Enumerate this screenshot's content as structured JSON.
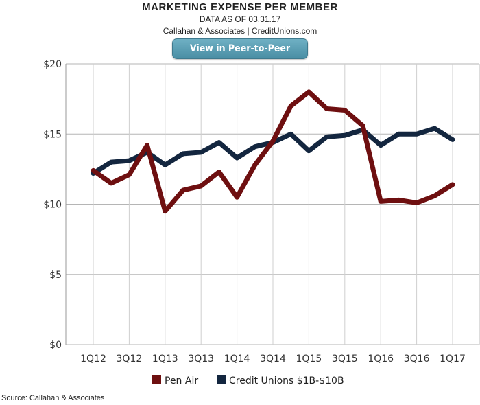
{
  "header": {
    "title": "MARKETING EXPENSE PER MEMBER",
    "subtitle1": "DATA AS OF 03.31.17",
    "subtitle2": "Callahan & Associates | CreditUnions.com",
    "button_label": "View in Peer-to-Peer"
  },
  "footer": {
    "source": "Source: Callahan & Associates"
  },
  "chart_data": {
    "type": "line",
    "x": [
      "1Q12",
      "2Q12",
      "3Q12",
      "4Q12",
      "1Q13",
      "2Q13",
      "3Q13",
      "4Q13",
      "1Q14",
      "2Q14",
      "3Q14",
      "4Q14",
      "1Q15",
      "2Q15",
      "3Q15",
      "4Q15",
      "1Q16",
      "2Q16",
      "3Q16",
      "4Q16",
      "1Q17"
    ],
    "tick_labels": [
      "1Q12",
      "3Q12",
      "1Q13",
      "3Q13",
      "1Q14",
      "3Q14",
      "1Q15",
      "3Q15",
      "1Q16",
      "3Q16",
      "1Q17"
    ],
    "y_tick_labels": [
      "$0",
      "$5",
      "$10",
      "$15",
      "$20"
    ],
    "ylim": [
      0,
      20
    ],
    "grid": true,
    "legend_position": "bottom",
    "series": [
      {
        "name": "Pen Air",
        "color": "#6e0f10",
        "values": [
          12.4,
          11.5,
          12.1,
          14.2,
          9.5,
          11.0,
          11.3,
          12.3,
          10.5,
          12.8,
          14.5,
          17.0,
          18.0,
          16.8,
          16.7,
          15.6,
          10.2,
          10.3,
          10.1,
          10.6,
          11.4
        ]
      },
      {
        "name": "Credit Unions $1B-$10B",
        "color": "#13263f",
        "values": [
          12.2,
          13.0,
          13.1,
          13.7,
          12.8,
          13.6,
          13.7,
          14.4,
          13.3,
          14.1,
          14.4,
          15.0,
          13.8,
          14.8,
          14.9,
          15.3,
          14.2,
          15.0,
          15.0,
          15.4,
          14.6
        ]
      }
    ]
  }
}
